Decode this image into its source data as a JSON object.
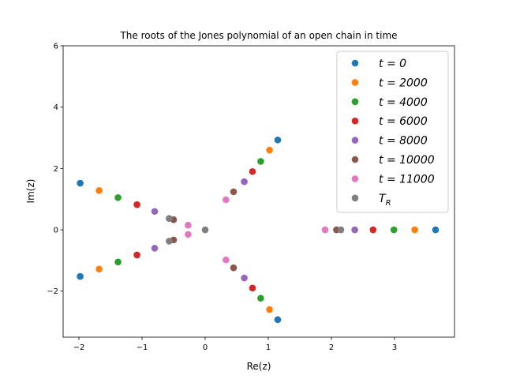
{
  "chart_data": {
    "type": "scatter",
    "title": "The roots of the Jones polynomial of an open chain in time",
    "xlabel": "Re(z)",
    "ylabel": "Im(z)",
    "xlim": [
      -2.25,
      3.95
    ],
    "ylim": [
      -3.5,
      6.0
    ],
    "xticks": [
      -2,
      -1,
      0,
      1,
      2,
      3
    ],
    "yticks": [
      -2,
      0,
      2,
      4,
      6
    ],
    "legend_position": "top-right",
    "grid": false,
    "series": [
      {
        "name": "t = 0",
        "color": "#1f77b4",
        "points": [
          [
            -1.98,
            1.52
          ],
          [
            -1.98,
            -1.52
          ],
          [
            1.15,
            2.93
          ],
          [
            1.15,
            -2.93
          ],
          [
            3.65,
            0
          ]
        ]
      },
      {
        "name": "t = 2000",
        "color": "#ff7f0e",
        "points": [
          [
            -1.68,
            1.28
          ],
          [
            -1.68,
            -1.28
          ],
          [
            1.02,
            2.6
          ],
          [
            1.02,
            -2.6
          ],
          [
            3.32,
            0
          ]
        ]
      },
      {
        "name": "t = 4000",
        "color": "#2ca02c",
        "points": [
          [
            -1.38,
            1.05
          ],
          [
            -1.38,
            -1.05
          ],
          [
            0.88,
            2.23
          ],
          [
            0.88,
            -2.23
          ],
          [
            2.99,
            0
          ]
        ]
      },
      {
        "name": "t = 6000",
        "color": "#d62728",
        "points": [
          [
            -1.08,
            0.82
          ],
          [
            -1.08,
            -0.82
          ],
          [
            0.75,
            1.9
          ],
          [
            0.75,
            -1.9
          ],
          [
            2.66,
            0
          ]
        ]
      },
      {
        "name": "t = 8000",
        "color": "#9467bd",
        "points": [
          [
            -0.8,
            0.6
          ],
          [
            -0.8,
            -0.6
          ],
          [
            0.62,
            1.57
          ],
          [
            0.62,
            -1.57
          ],
          [
            2.37,
            0
          ]
        ]
      },
      {
        "name": "t = 10000",
        "color": "#8c564b",
        "points": [
          [
            -0.5,
            0.33
          ],
          [
            -0.5,
            -0.33
          ],
          [
            0.45,
            1.24
          ],
          [
            0.45,
            -1.24
          ],
          [
            2.08,
            0
          ]
        ]
      },
      {
        "name": "t = 11000",
        "color": "#e377c2",
        "points": [
          [
            -0.27,
            0.15
          ],
          [
            -0.27,
            -0.15
          ],
          [
            0.33,
            0.98
          ],
          [
            0.33,
            -0.98
          ],
          [
            1.9,
            0
          ]
        ]
      },
      {
        "name": "T_R",
        "color": "#7f7f7f",
        "points": [
          [
            -0.57,
            0.37
          ],
          [
            -0.57,
            -0.37
          ],
          [
            0.0,
            0.0
          ],
          [
            2.15,
            0
          ]
        ]
      }
    ]
  }
}
